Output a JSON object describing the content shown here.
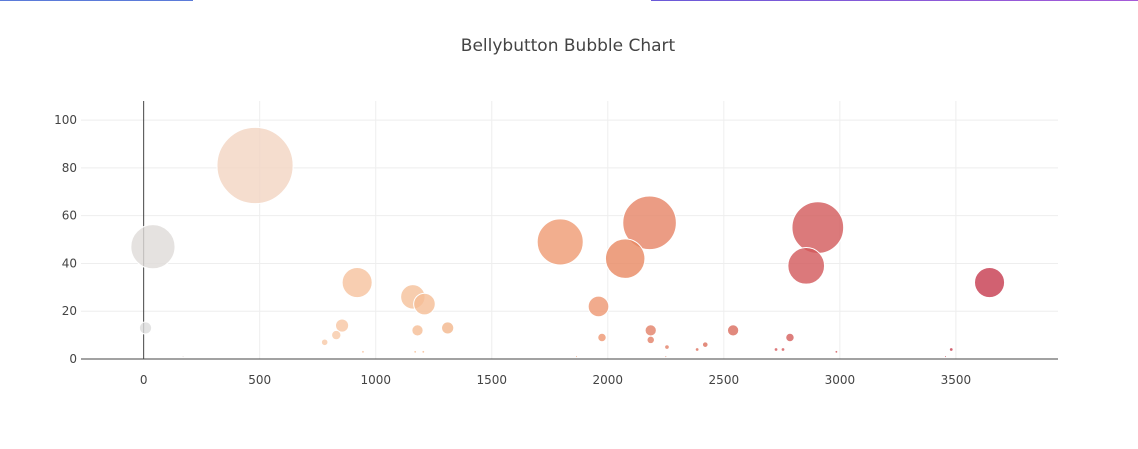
{
  "chart_data": {
    "type": "scatter",
    "title": "Bellybutton Bubble Chart",
    "xlabel": "",
    "ylabel": "",
    "xlim": [
      -270,
      3940
    ],
    "ylim": [
      0,
      108
    ],
    "x_ticks": [
      0,
      500,
      1000,
      1500,
      2000,
      2500,
      3000,
      3500
    ],
    "y_ticks": [
      0,
      20,
      40,
      60,
      80,
      100
    ],
    "grid": true,
    "legend": false,
    "series": [
      {
        "x": [
          8,
          40,
          170,
          480,
          780,
          830,
          855,
          920,
          945,
          1160,
          1170,
          1180,
          1205,
          1210,
          1310,
          1795,
          1865,
          1960,
          1975,
          2075,
          2180,
          2185,
          2185,
          2250,
          2255,
          2385,
          2420,
          2540,
          2725,
          2755,
          2785,
          2855,
          2905,
          2985,
          3455,
          3480,
          3645
        ],
        "y": [
          13,
          47,
          1,
          81,
          7,
          10,
          14,
          32,
          3,
          26,
          3,
          12,
          3,
          23,
          13,
          49,
          1,
          22,
          9,
          42,
          57,
          12,
          8,
          1,
          5,
          4,
          6,
          12,
          4,
          4,
          9,
          39,
          55,
          3,
          1,
          4,
          32
        ],
        "sizes": [
          13,
          47,
          1,
          81,
          7,
          10,
          14,
          32,
          3,
          26,
          3,
          12,
          3,
          23,
          13,
          49,
          1,
          22,
          9,
          42,
          57,
          12,
          8,
          1,
          5,
          4,
          6,
          12,
          4,
          4,
          9,
          39,
          55,
          3,
          1,
          4,
          32
        ],
        "colors": [
          "#dcdcdc",
          "#dedbd8",
          "#e0d5cf",
          "#f2d4c2",
          "#f8c9a8",
          "#f8c9a8",
          "#f8c6a3",
          "#f6c29e",
          "#f6c29e",
          "#f5c09a",
          "#f5c09a",
          "#f5bd95",
          "#f5bd95",
          "#f5bd95",
          "#f3b68c",
          "#ef9a72",
          "#ef9a72",
          "#ed9670",
          "#ed9670",
          "#e88862",
          "#e68365",
          "#e27f67",
          "#e27f67",
          "#e27f67",
          "#e27f67",
          "#dc6f5c",
          "#dc6f5c",
          "#d96b5c",
          "#d4585a",
          "#d4585a",
          "#d55e5b",
          "#d2575a",
          "#d2595a",
          "#d05558",
          "#c73f4f",
          "#c73f4f",
          "#c63a4d"
        ]
      }
    ]
  }
}
